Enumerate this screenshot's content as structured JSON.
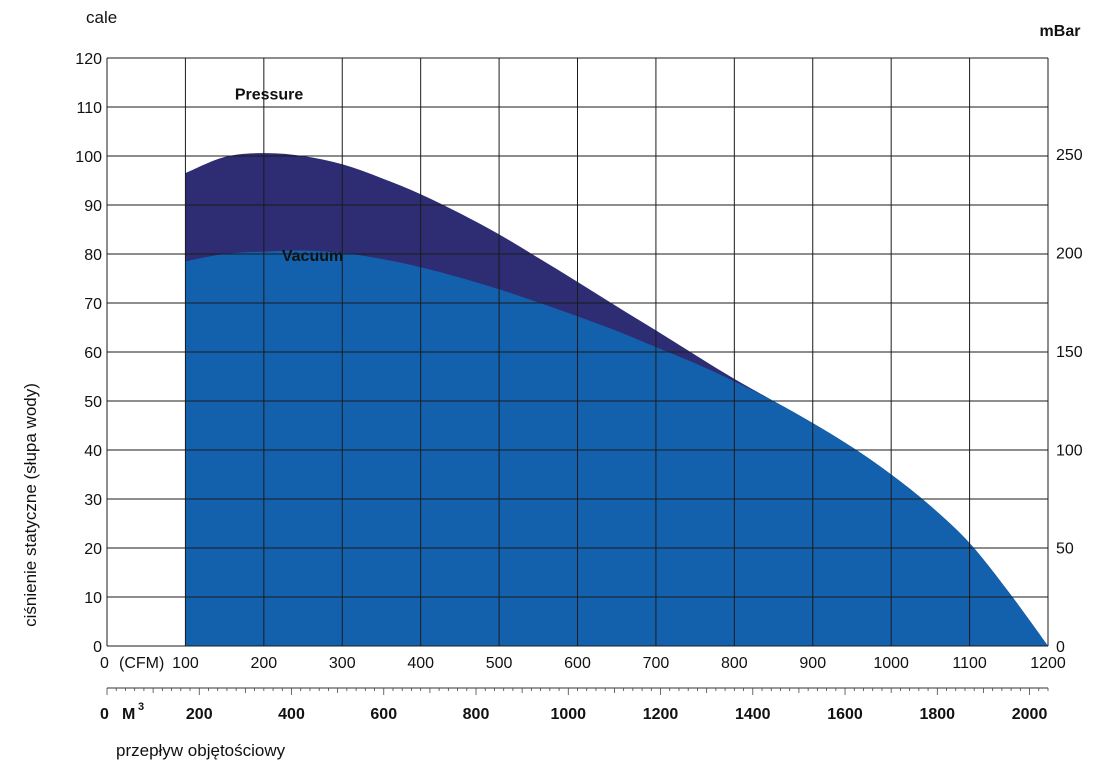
{
  "chart_data": {
    "type": "area",
    "left_unit_label": "cale",
    "right_unit_label": "mBar",
    "ylabel": "ciśnienie statyczne (słupa wody)",
    "xlabel": "przepływ objętościowy",
    "cfm_prefix": "0",
    "cfm_unit": "(CFM)",
    "m3_prefix": "0",
    "m3_unit": "M",
    "m3_unit_sup": "3",
    "x_range_cfm": [
      0,
      1200
    ],
    "y_range_inches": [
      0,
      120
    ],
    "y_right_range_mbar": [
      0,
      298.9
    ],
    "cfm_ticks": [
      "100",
      "200",
      "300",
      "400",
      "500",
      "600",
      "700",
      "800",
      "900",
      "1000",
      "1100",
      "1200"
    ],
    "cfm_tick_values": [
      100,
      200,
      300,
      400,
      500,
      600,
      700,
      800,
      900,
      1000,
      1100,
      1200
    ],
    "m3_ticks": [
      "200",
      "400",
      "600",
      "800",
      "1000",
      "1200",
      "1400",
      "1600",
      "1800",
      "2000"
    ],
    "m3_tick_values": [
      200,
      400,
      600,
      800,
      1000,
      1200,
      1400,
      1600,
      1800,
      2000
    ],
    "m3_max": 2040,
    "y_left_ticks": [
      "0",
      "10",
      "20",
      "30",
      "40",
      "50",
      "60",
      "70",
      "80",
      "90",
      "100",
      "110",
      "120"
    ],
    "y_left_tick_values": [
      0,
      10,
      20,
      30,
      40,
      50,
      60,
      70,
      80,
      90,
      100,
      110,
      120
    ],
    "y_right_ticks": [
      "0",
      "50",
      "100",
      "150",
      "200",
      "250"
    ],
    "y_right_tick_values": [
      0,
      50,
      100,
      150,
      200,
      250
    ],
    "grid": true,
    "series": [
      {
        "name": "Pressure",
        "color": "#2e2c72",
        "x": [
          100,
          150,
          200,
          250,
          300,
          350,
          400,
          450,
          500,
          550,
          600,
          650,
          700,
          750,
          800,
          850,
          900,
          950,
          1000,
          1050,
          1100,
          1150,
          1200
        ],
        "y": [
          96.5,
          99.8,
          100.6,
          100.0,
          98.3,
          95.5,
          92.2,
          88.3,
          84.0,
          79.2,
          74.3,
          69.3,
          64.4,
          59.4,
          54.5,
          50.0,
          45.5,
          40.6,
          35.0,
          28.6,
          21.0,
          11.0,
          0
        ]
      },
      {
        "name": "Vacuum",
        "color": "#1361ad",
        "x": [
          100,
          150,
          200,
          250,
          300,
          350,
          400,
          450,
          500,
          550,
          600,
          650,
          700,
          750,
          800,
          850,
          900,
          950,
          1000,
          1050,
          1100,
          1150,
          1200
        ],
        "y": [
          78.5,
          80.0,
          80.5,
          80.7,
          80.2,
          79.0,
          77.3,
          75.2,
          72.8,
          70.1,
          67.3,
          64.3,
          61.0,
          57.7,
          54.0,
          50.0,
          45.5,
          40.6,
          35.0,
          28.6,
          21.0,
          11.0,
          0
        ]
      }
    ]
  }
}
